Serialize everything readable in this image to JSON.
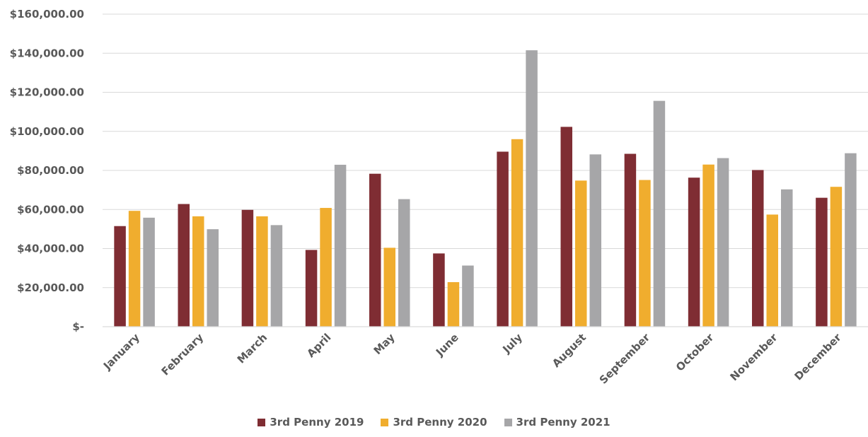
{
  "chart_data": {
    "type": "bar",
    "title": "",
    "xlabel": "",
    "ylabel": "",
    "ylim": [
      0,
      160000
    ],
    "yticks": [
      0,
      20000,
      40000,
      60000,
      80000,
      100000,
      120000,
      140000,
      160000
    ],
    "ytick_labels": [
      "$-",
      "$20,000.00",
      "$40,000.00",
      "$60,000.00",
      "$80,000.00",
      "$100,000.00",
      "$120,000.00",
      "$140,000.00",
      "$160,000.00"
    ],
    "categories": [
      "January",
      "February",
      "March",
      "April",
      "May",
      "June",
      "July",
      "August",
      "September",
      "October",
      "November",
      "December"
    ],
    "series": [
      {
        "name": "3rd Penny 2019",
        "color": "#7F2D33",
        "values": [
          51500,
          62800,
          59800,
          39300,
          78300,
          37500,
          89600,
          102300,
          88500,
          76300,
          80200,
          66000
        ]
      },
      {
        "name": "3rd Penny 2020",
        "color": "#F0AD2E",
        "values": [
          59300,
          56500,
          56500,
          60800,
          40400,
          22800,
          96000,
          74800,
          75100,
          83000,
          57400,
          71600
        ]
      },
      {
        "name": "3rd Penny 2021",
        "color": "#A6A6A8",
        "values": [
          55800,
          49900,
          52000,
          82900,
          65300,
          31300,
          141500,
          88200,
          115600,
          86300,
          70300,
          88800
        ]
      }
    ],
    "grid": true,
    "legend_position": "bottom"
  }
}
